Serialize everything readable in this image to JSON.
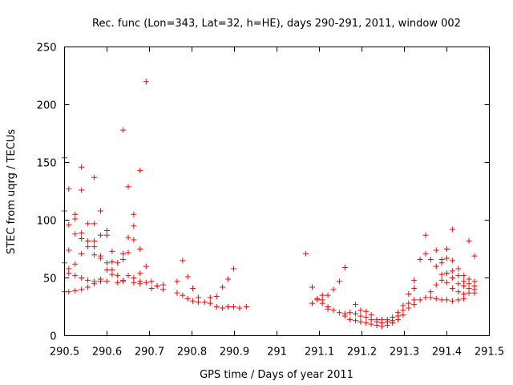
{
  "chart_data": {
    "type": "scatter",
    "title": "Rec. func (Lon=343, Lat=32, h=HE), days 290-291, 2011, window 002",
    "xlabel": "GPS time / Days of year 2011",
    "ylabel": "STEC from uqrg / TECUs",
    "xlim": [
      290.5,
      291.5
    ],
    "ylim": [
      0,
      250
    ],
    "xticks": [
      290.5,
      290.6,
      290.7,
      290.8,
      290.9,
      291,
      291.1,
      291.2,
      291.3,
      291.4,
      291.5
    ],
    "xtick_labels": [
      "290.5",
      "290.6",
      "290.7",
      "290.8",
      "290.9",
      "291",
      "291.1",
      "291.2",
      "291.3",
      "291.4",
      "291.5"
    ],
    "yticks": [
      0,
      50,
      100,
      150,
      200,
      250
    ],
    "ytick_labels": [
      "0",
      "50",
      "100",
      "150",
      "200",
      "250"
    ],
    "marker": "+",
    "color": "#ff0000",
    "series": [
      {
        "name": "STEC",
        "points": [
          [
            290.5,
            154
          ],
          [
            290.5,
            108
          ],
          [
            290.5,
            63
          ],
          [
            290.5,
            38
          ],
          [
            290.51,
            127
          ],
          [
            290.51,
            96
          ],
          [
            290.51,
            74
          ],
          [
            290.51,
            58
          ],
          [
            290.51,
            54
          ],
          [
            290.51,
            38
          ],
          [
            290.525,
            105
          ],
          [
            290.525,
            101
          ],
          [
            290.525,
            88
          ],
          [
            290.525,
            62
          ],
          [
            290.525,
            52
          ],
          [
            290.525,
            39
          ],
          [
            290.54,
            146
          ],
          [
            290.54,
            126
          ],
          [
            290.54,
            89
          ],
          [
            290.54,
            84
          ],
          [
            290.54,
            71
          ],
          [
            290.54,
            50
          ],
          [
            290.54,
            40
          ],
          [
            290.555,
            97
          ],
          [
            290.555,
            82
          ],
          [
            290.555,
            77
          ],
          [
            290.555,
            48
          ],
          [
            290.555,
            42
          ],
          [
            290.57,
            137
          ],
          [
            290.57,
            97
          ],
          [
            290.57,
            82
          ],
          [
            290.57,
            77
          ],
          [
            290.57,
            70
          ],
          [
            290.57,
            47
          ],
          [
            290.57,
            45
          ],
          [
            290.585,
            108
          ],
          [
            290.585,
            87
          ],
          [
            290.585,
            69
          ],
          [
            290.585,
            67
          ],
          [
            290.585,
            49
          ],
          [
            290.585,
            47
          ],
          [
            290.6,
            91
          ],
          [
            290.6,
            87
          ],
          [
            290.6,
            63
          ],
          [
            290.6,
            57
          ],
          [
            290.6,
            47
          ],
          [
            290.612,
            73
          ],
          [
            290.612,
            64
          ],
          [
            290.612,
            57
          ],
          [
            290.612,
            53
          ],
          [
            290.625,
            63
          ],
          [
            290.625,
            52
          ],
          [
            290.625,
            46
          ],
          [
            290.638,
            178
          ],
          [
            290.638,
            71
          ],
          [
            290.638,
            66
          ],
          [
            290.638,
            47
          ],
          [
            290.638,
            48
          ],
          [
            290.65,
            129
          ],
          [
            290.65,
            85
          ],
          [
            290.65,
            72
          ],
          [
            290.65,
            52
          ],
          [
            290.663,
            105
          ],
          [
            290.663,
            95
          ],
          [
            290.663,
            83
          ],
          [
            290.663,
            50
          ],
          [
            290.663,
            46
          ],
          [
            290.678,
            143
          ],
          [
            290.678,
            75
          ],
          [
            290.678,
            54
          ],
          [
            290.678,
            47
          ],
          [
            290.678,
            45
          ],
          [
            290.692,
            220
          ],
          [
            290.692,
            60
          ],
          [
            290.692,
            46
          ],
          [
            290.705,
            47
          ],
          [
            290.705,
            41
          ],
          [
            290.718,
            43
          ],
          [
            290.718,
            43
          ],
          [
            290.732,
            44
          ],
          [
            290.732,
            40
          ],
          [
            290.765,
            47
          ],
          [
            290.765,
            37
          ],
          [
            290.778,
            65
          ],
          [
            290.778,
            35
          ],
          [
            290.79,
            51
          ],
          [
            290.79,
            32
          ],
          [
            290.802,
            41
          ],
          [
            290.802,
            30
          ],
          [
            290.815,
            29
          ],
          [
            290.815,
            33
          ],
          [
            290.83,
            29
          ],
          [
            290.843,
            33
          ],
          [
            290.843,
            28
          ],
          [
            290.858,
            25
          ],
          [
            290.858,
            34
          ],
          [
            290.872,
            42
          ],
          [
            290.872,
            24
          ],
          [
            290.885,
            49
          ],
          [
            290.885,
            25
          ],
          [
            290.898,
            58
          ],
          [
            290.898,
            25
          ],
          [
            290.912,
            24
          ],
          [
            290.928,
            25
          ],
          [
            291.068,
            71
          ],
          [
            291.083,
            42
          ],
          [
            291.083,
            28
          ],
          [
            291.095,
            31
          ],
          [
            291.095,
            32
          ],
          [
            291.107,
            35
          ],
          [
            291.107,
            31
          ],
          [
            291.107,
            28
          ],
          [
            291.12,
            35
          ],
          [
            291.12,
            25
          ],
          [
            291.12,
            23
          ],
          [
            291.133,
            40
          ],
          [
            291.133,
            22
          ],
          [
            291.147,
            47
          ],
          [
            291.147,
            20
          ],
          [
            291.16,
            59
          ],
          [
            291.16,
            19
          ],
          [
            291.16,
            17
          ],
          [
            291.172,
            20
          ],
          [
            291.172,
            14
          ],
          [
            291.185,
            27
          ],
          [
            291.185,
            19
          ],
          [
            291.185,
            13
          ],
          [
            291.197,
            22
          ],
          [
            291.197,
            17
          ],
          [
            291.197,
            12
          ],
          [
            291.21,
            21
          ],
          [
            291.21,
            16
          ],
          [
            291.21,
            11
          ],
          [
            291.222,
            18
          ],
          [
            291.222,
            14
          ],
          [
            291.222,
            10
          ],
          [
            291.235,
            14
          ],
          [
            291.235,
            12
          ],
          [
            291.235,
            9
          ],
          [
            291.247,
            14
          ],
          [
            291.247,
            11
          ],
          [
            291.247,
            8
          ],
          [
            291.26,
            14
          ],
          [
            291.26,
            12
          ],
          [
            291.26,
            9
          ],
          [
            291.272,
            16
          ],
          [
            291.272,
            13
          ],
          [
            291.272,
            11
          ],
          [
            291.285,
            20
          ],
          [
            291.285,
            17
          ],
          [
            291.285,
            14
          ],
          [
            291.297,
            26
          ],
          [
            291.297,
            22
          ],
          [
            291.297,
            18
          ],
          [
            291.31,
            36
          ],
          [
            291.31,
            28
          ],
          [
            291.31,
            24
          ],
          [
            291.323,
            48
          ],
          [
            291.323,
            41
          ],
          [
            291.323,
            31
          ],
          [
            291.323,
            27
          ],
          [
            291.337,
            66
          ],
          [
            291.337,
            31
          ],
          [
            291.35,
            87
          ],
          [
            291.35,
            71
          ],
          [
            291.35,
            33
          ],
          [
            291.362,
            66
          ],
          [
            291.362,
            38
          ],
          [
            291.362,
            33
          ],
          [
            291.375,
            74
          ],
          [
            291.375,
            60
          ],
          [
            291.375,
            44
          ],
          [
            291.375,
            32
          ],
          [
            291.388,
            66
          ],
          [
            291.388,
            63
          ],
          [
            291.388,
            53
          ],
          [
            291.388,
            48
          ],
          [
            291.388,
            31
          ],
          [
            291.4,
            75
          ],
          [
            291.4,
            67
          ],
          [
            291.4,
            54
          ],
          [
            291.4,
            46
          ],
          [
            291.4,
            31
          ],
          [
            291.413,
            92
          ],
          [
            291.413,
            65
          ],
          [
            291.413,
            56
          ],
          [
            291.413,
            50
          ],
          [
            291.413,
            41
          ],
          [
            291.413,
            30
          ],
          [
            291.427,
            58
          ],
          [
            291.427,
            52
          ],
          [
            291.427,
            45
          ],
          [
            291.427,
            38
          ],
          [
            291.427,
            31
          ],
          [
            291.44,
            52
          ],
          [
            291.44,
            47
          ],
          [
            291.44,
            43
          ],
          [
            291.44,
            36
          ],
          [
            291.44,
            32
          ],
          [
            291.452,
            82
          ],
          [
            291.452,
            49
          ],
          [
            291.452,
            45
          ],
          [
            291.452,
            41
          ],
          [
            291.452,
            37
          ],
          [
            291.465,
            69
          ],
          [
            291.465,
            47
          ],
          [
            291.465,
            43
          ],
          [
            291.465,
            40
          ],
          [
            291.465,
            37
          ]
        ]
      }
    ]
  }
}
